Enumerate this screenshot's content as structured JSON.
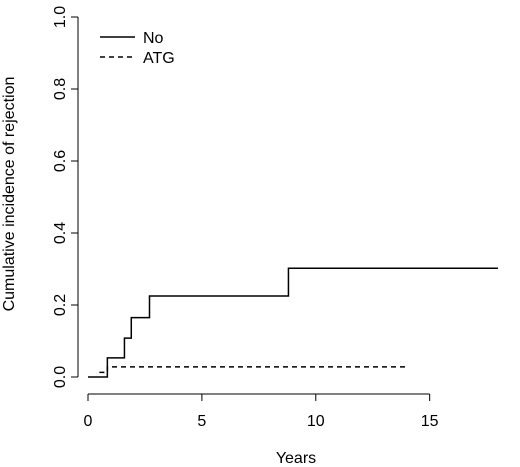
{
  "chart_data": {
    "type": "line",
    "step": true,
    "title": "",
    "xlabel": "Years",
    "ylabel": "Cumulative incidence of rejection",
    "xlim": [
      0,
      18
    ],
    "ylim": [
      0,
      1.0
    ],
    "xticks": [
      0,
      5,
      10,
      15
    ],
    "yticks": [
      0.0,
      0.2,
      0.4,
      0.6,
      0.8,
      1.0
    ],
    "xtick_labels": [
      "0",
      "5",
      "10",
      "15"
    ],
    "ytick_labels": [
      "0.0",
      "0.2",
      "0.4",
      "0.6",
      "0.8",
      "1.0"
    ],
    "legend_position": "top-left",
    "series": [
      {
        "name": "No",
        "line_style": "solid",
        "x": [
          0,
          0.85,
          1.6,
          1.9,
          2.7,
          8.8,
          18
        ],
        "y": [
          0,
          0.053,
          0.108,
          0.165,
          0.225,
          0.302,
          0.302
        ]
      },
      {
        "name": "ATG",
        "line_style": "dashed",
        "x": [
          0.5,
          0.85,
          14
        ],
        "y": [
          0.013,
          0.028,
          0.028
        ]
      }
    ]
  }
}
